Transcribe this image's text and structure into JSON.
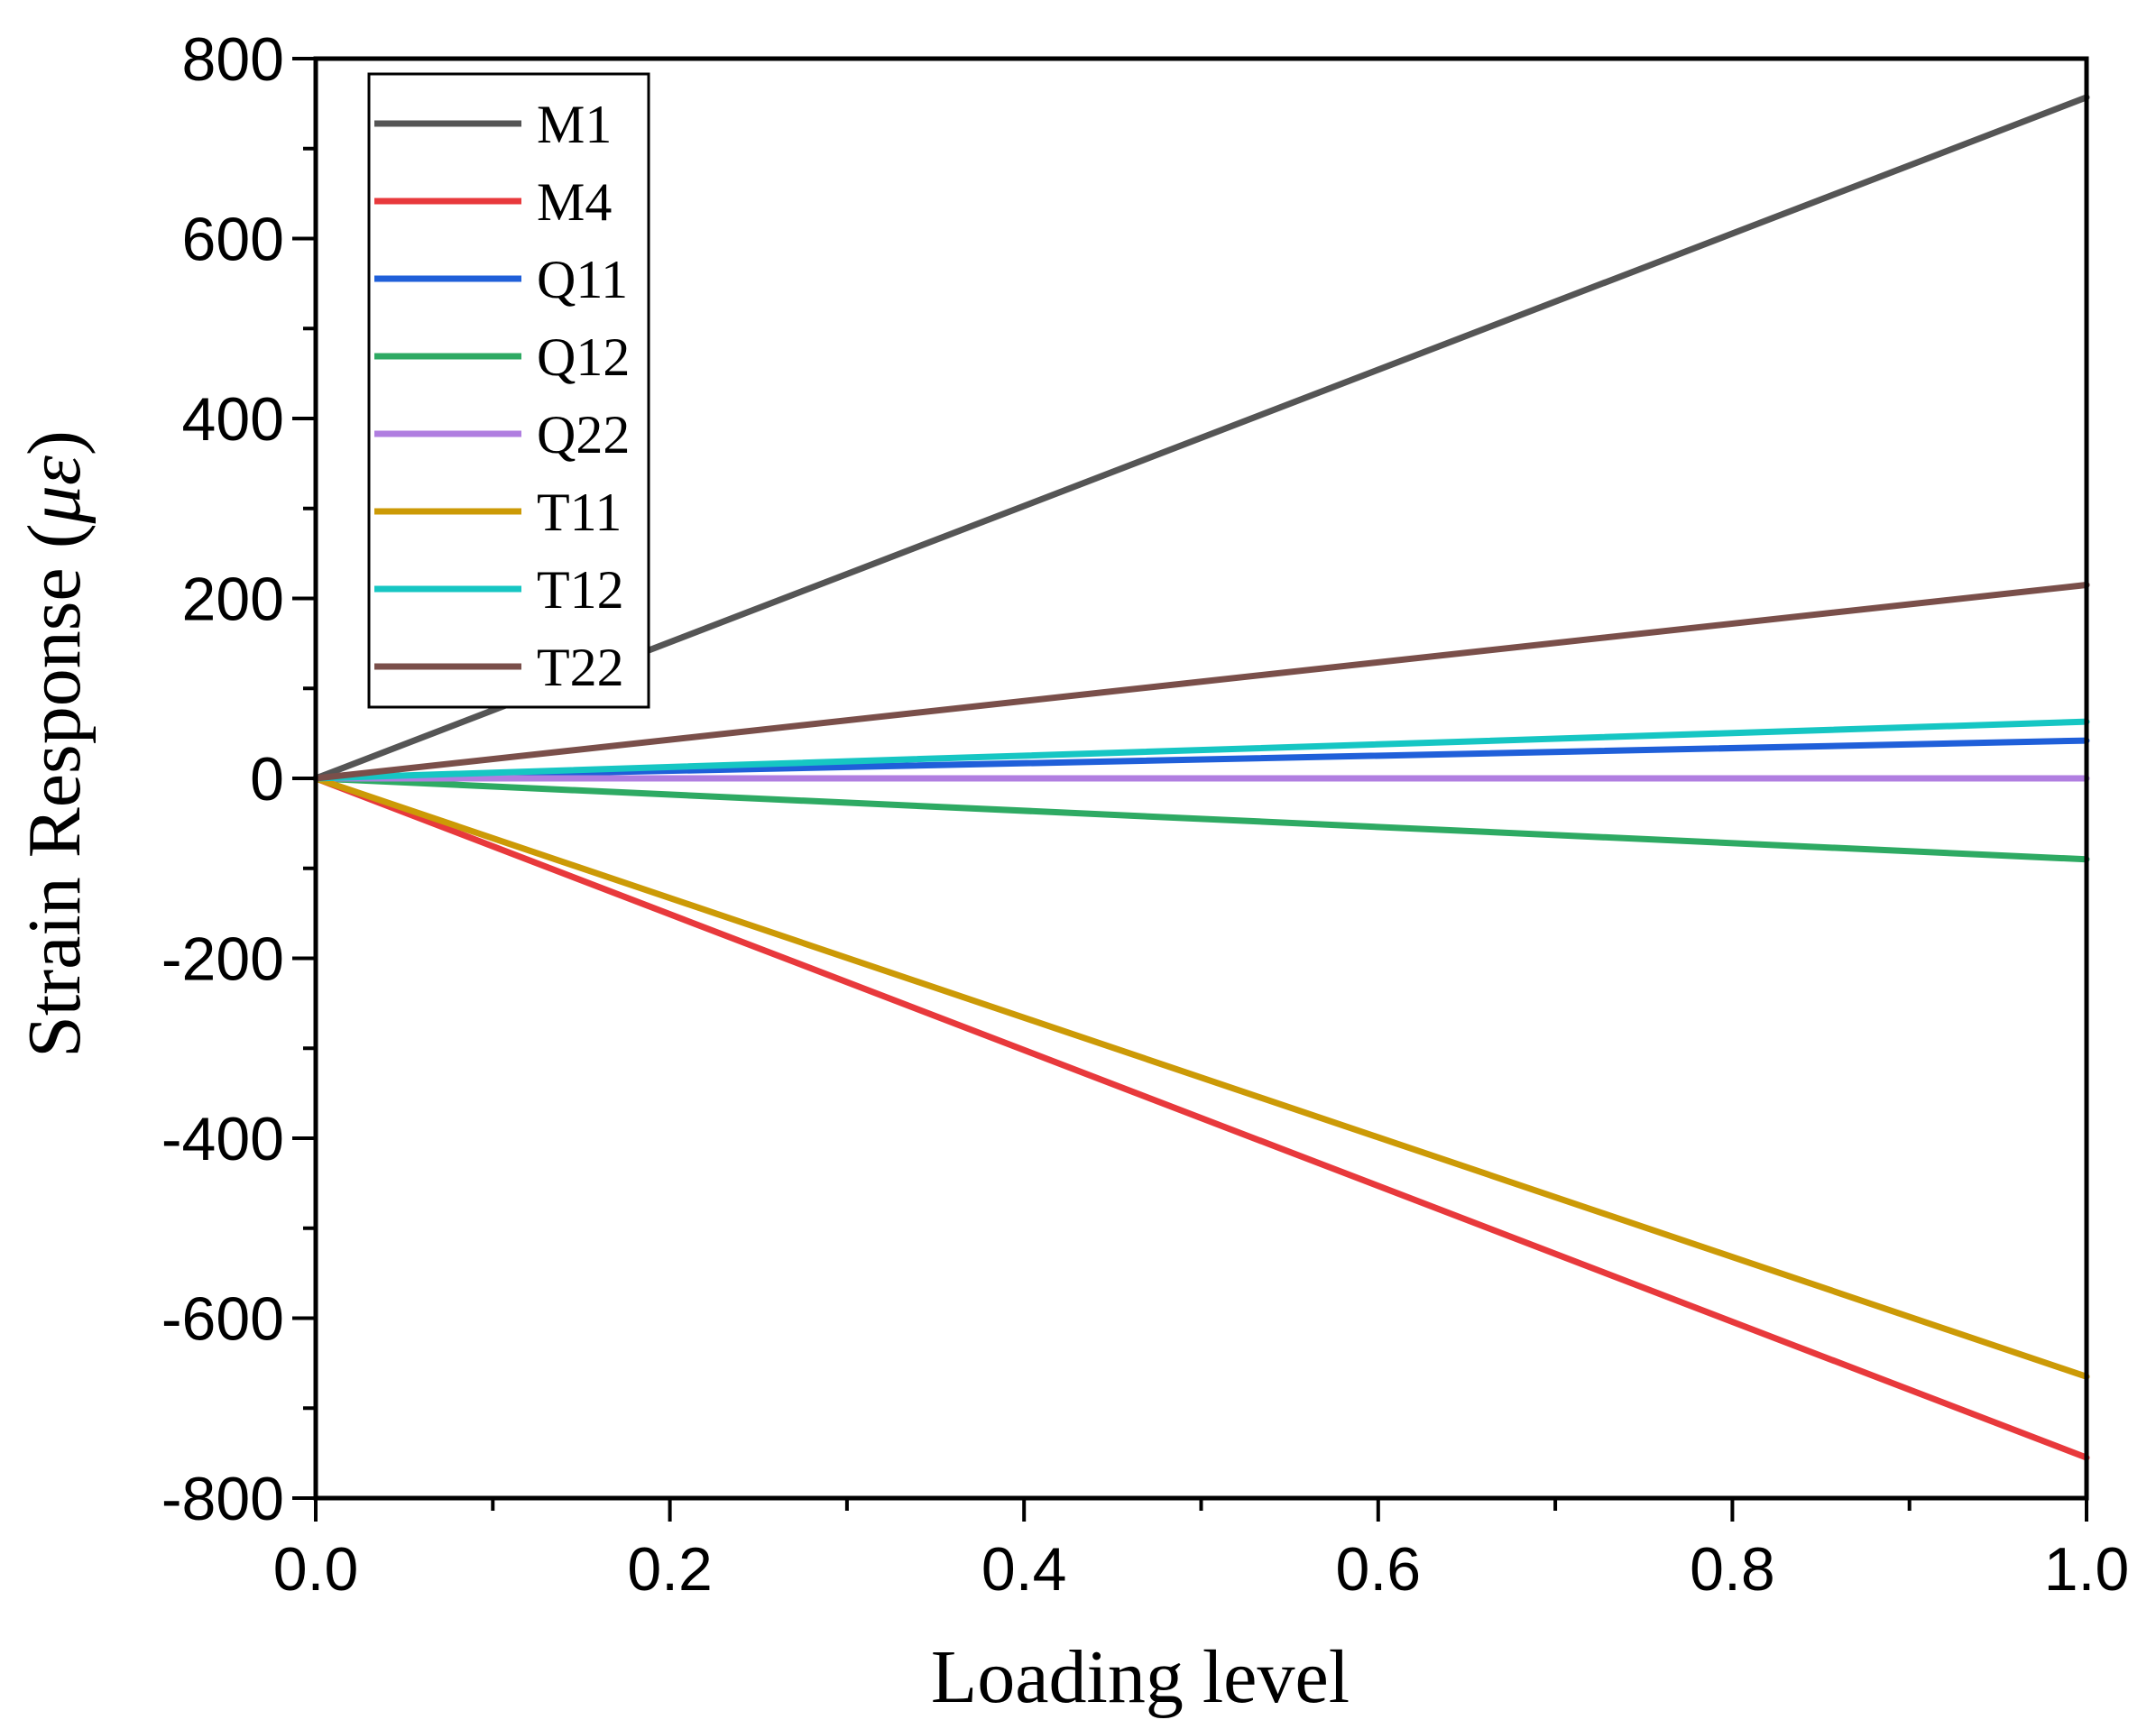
{
  "chart_data": {
    "type": "line",
    "title": "",
    "xlabel": "Loading level",
    "ylabel": "Strain Response (",
    "ylabel_symbol": "με",
    "ylabel_close": ")",
    "xlim": [
      0.0,
      1.0
    ],
    "ylim": [
      -800,
      800
    ],
    "x_ticks": [
      0.0,
      0.2,
      0.4,
      0.6,
      0.8,
      1.0
    ],
    "x_tick_labels": [
      "0.0",
      "0.2",
      "0.4",
      "0.6",
      "0.8",
      "1.0"
    ],
    "y_ticks": [
      800,
      600,
      400,
      200,
      0,
      -200,
      -400,
      -600,
      -800
    ],
    "y_tick_labels": [
      "800",
      "600",
      "400",
      "200",
      "0",
      "-200",
      "-400",
      "-600",
      "-800"
    ],
    "legend": "top-left",
    "grid": false,
    "series": [
      {
        "name": "M1",
        "color": "#555555",
        "x": [
          0,
          1
        ],
        "y": [
          0,
          757
        ]
      },
      {
        "name": "M4",
        "color": "#e8393c",
        "x": [
          0,
          1
        ],
        "y": [
          0,
          -755
        ]
      },
      {
        "name": "Q11",
        "color": "#1f5fd9",
        "x": [
          0,
          1
        ],
        "y": [
          0,
          42
        ]
      },
      {
        "name": "Q12",
        "color": "#2eaa63",
        "x": [
          0,
          1
        ],
        "y": [
          0,
          -90
        ]
      },
      {
        "name": "Q22",
        "color": "#b07ee0",
        "x": [
          0,
          1
        ],
        "y": [
          0,
          0
        ]
      },
      {
        "name": "T11",
        "color": "#cc9a06",
        "x": [
          0,
          1
        ],
        "y": [
          0,
          -665
        ]
      },
      {
        "name": "T12",
        "color": "#16c6c3",
        "x": [
          0,
          1
        ],
        "y": [
          0,
          63
        ]
      },
      {
        "name": "T22",
        "color": "#7a4f4a",
        "x": [
          0,
          1
        ],
        "y": [
          0,
          215
        ]
      }
    ]
  }
}
